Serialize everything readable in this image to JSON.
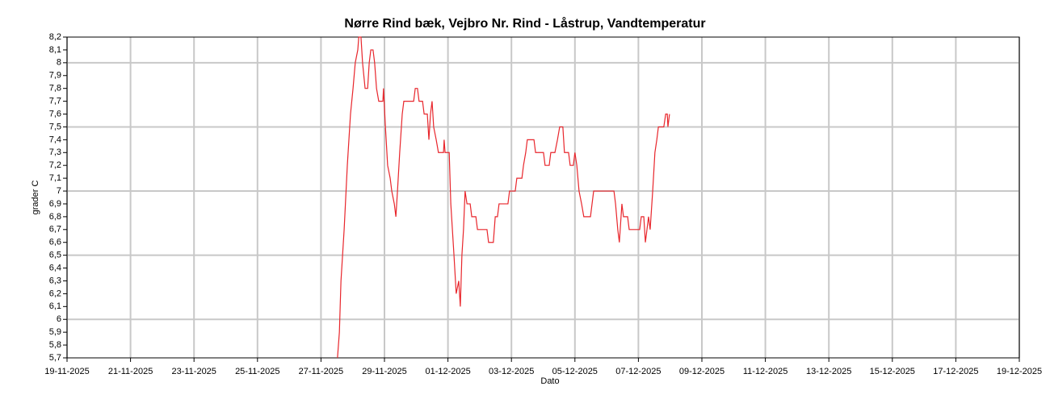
{
  "chart_data": {
    "type": "line",
    "title": "Nørre Rind bæk, Vejbro Nr. Rind - Låstrup, Vandtemperatur",
    "xlabel": "Dato",
    "ylabel": "grader C",
    "grid": true,
    "xlim": [
      0,
      30
    ],
    "xticks": [
      {
        "value": 0,
        "label": "19-11-2025"
      },
      {
        "value": 2,
        "label": "21-11-2025"
      },
      {
        "value": 4,
        "label": "23-11-2025"
      },
      {
        "value": 6,
        "label": "25-11-2025"
      },
      {
        "value": 8,
        "label": "27-11-2025"
      },
      {
        "value": 10,
        "label": "29-11-2025"
      },
      {
        "value": 12,
        "label": "01-12-2025"
      },
      {
        "value": 14,
        "label": "03-12-2025"
      },
      {
        "value": 16,
        "label": "05-12-2025"
      },
      {
        "value": 18,
        "label": "07-12-2025"
      },
      {
        "value": 20,
        "label": "09-12-2025"
      },
      {
        "value": 22,
        "label": "11-12-2025"
      },
      {
        "value": 24,
        "label": "13-12-2025"
      },
      {
        "value": 26,
        "label": "15-12-2025"
      },
      {
        "value": 28,
        "label": "17-12-2025"
      },
      {
        "value": 30,
        "label": "19-12-2025"
      }
    ],
    "ylim": [
      5.7,
      8.2
    ],
    "yticks": [
      {
        "value": 5.7,
        "label": "5,7"
      },
      {
        "value": 5.8,
        "label": "5,8"
      },
      {
        "value": 5.9,
        "label": "5,9"
      },
      6,
      {
        "value": 6.1,
        "label": "6,1"
      },
      {
        "value": 6.2,
        "label": "6,2"
      },
      {
        "value": 6.3,
        "label": "6,3"
      },
      {
        "value": 6.4,
        "label": "6,4"
      },
      {
        "value": 6.5,
        "label": "6,5"
      },
      {
        "value": 6.6,
        "label": "6,6"
      },
      {
        "value": 6.7,
        "label": "6,7"
      },
      {
        "value": 6.8,
        "label": "6,8"
      },
      {
        "value": 6.9,
        "label": "6,9"
      },
      7,
      {
        "value": 7.1,
        "label": "7,1"
      },
      {
        "value": 7.2,
        "label": "7,2"
      },
      {
        "value": 7.3,
        "label": "7,3"
      },
      {
        "value": 7.4,
        "label": "7,4"
      },
      {
        "value": 7.5,
        "label": "7,5"
      },
      {
        "value": 7.6,
        "label": "7,6"
      },
      {
        "value": 7.7,
        "label": "7,7"
      },
      {
        "value": 7.8,
        "label": "7,8"
      },
      {
        "value": 7.9,
        "label": "7,9"
      },
      8,
      {
        "value": 8.1,
        "label": "8,1"
      },
      {
        "value": 8.2,
        "label": "8,2"
      }
    ],
    "x": [
      8.52,
      8.58,
      8.63,
      8.73,
      8.83,
      8.93,
      9.01,
      9.08,
      9.16,
      9.19,
      9.26,
      9.31,
      9.39,
      9.47,
      9.52,
      9.57,
      9.64,
      9.69,
      9.75,
      9.82,
      9.95,
      9.97,
      10.03,
      10.1,
      10.18,
      10.23,
      10.31,
      10.36,
      10.41,
      10.48,
      10.56,
      10.61,
      10.92,
      10.97,
      11.04,
      11.09,
      11.2,
      11.25,
      11.35,
      11.4,
      11.45,
      11.5,
      11.55,
      11.63,
      11.7,
      11.86,
      11.88,
      11.91,
      12.04,
      12.09,
      12.19,
      12.26,
      12.34,
      12.39,
      12.44,
      12.49,
      12.54,
      12.6,
      12.7,
      12.75,
      12.88,
      12.93,
      13.23,
      13.28,
      13.43,
      13.49,
      13.56,
      13.61,
      13.89,
      13.94,
      14.12,
      14.17,
      14.33,
      14.38,
      14.45,
      14.5,
      14.71,
      14.76,
      15.01,
      15.06,
      15.19,
      15.24,
      15.37,
      15.45,
      15.52,
      15.62,
      15.67,
      15.8,
      15.85,
      15.95,
      16.0,
      16.06,
      16.13,
      16.21,
      16.28,
      16.49,
      16.59,
      17.23,
      17.28,
      17.35,
      17.4,
      17.48,
      17.53,
      17.66,
      17.71,
      18.04,
      18.09,
      18.17,
      18.22,
      18.27,
      18.32,
      18.37,
      18.45,
      18.52,
      18.58,
      18.63,
      18.8,
      18.86,
      18.91,
      18.93,
      18.98
    ],
    "series": [
      {
        "color": "#e8262c",
        "values": [
          5.7,
          5.9,
          6.3,
          6.7,
          7.2,
          7.6,
          7.8,
          8.0,
          8.1,
          8.2,
          8.2,
          8.0,
          7.8,
          7.8,
          8.0,
          8.1,
          8.1,
          8.0,
          7.8,
          7.7,
          7.7,
          7.8,
          7.5,
          7.2,
          7.1,
          7.0,
          6.9,
          6.8,
          7.0,
          7.3,
          7.6,
          7.7,
          7.7,
          7.8,
          7.8,
          7.7,
          7.7,
          7.6,
          7.6,
          7.4,
          7.6,
          7.7,
          7.5,
          7.4,
          7.3,
          7.3,
          7.4,
          7.3,
          7.3,
          6.9,
          6.5,
          6.2,
          6.3,
          6.1,
          6.5,
          6.7,
          7.0,
          6.9,
          6.9,
          6.8,
          6.8,
          6.7,
          6.7,
          6.6,
          6.6,
          6.8,
          6.8,
          6.9,
          6.9,
          7.0,
          7.0,
          7.1,
          7.1,
          7.2,
          7.3,
          7.4,
          7.4,
          7.3,
          7.3,
          7.2,
          7.2,
          7.3,
          7.3,
          7.4,
          7.5,
          7.5,
          7.3,
          7.3,
          7.2,
          7.2,
          7.3,
          7.2,
          7.0,
          6.9,
          6.8,
          6.8,
          7.0,
          7.0,
          6.9,
          6.7,
          6.6,
          6.9,
          6.8,
          6.8,
          6.7,
          6.7,
          6.8,
          6.8,
          6.6,
          6.7,
          6.8,
          6.7,
          7.0,
          7.3,
          7.4,
          7.5,
          7.5,
          7.6,
          7.6,
          7.5,
          7.6
        ]
      }
    ]
  }
}
